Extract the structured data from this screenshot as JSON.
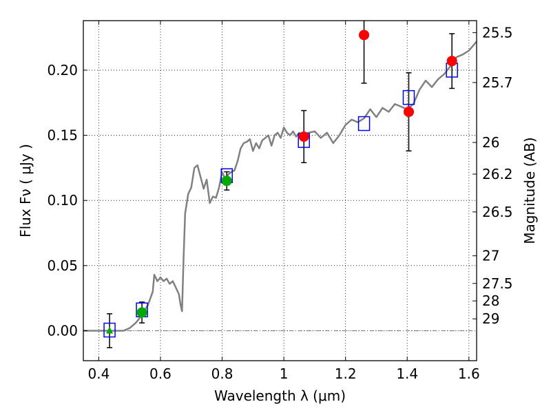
{
  "chart_data": {
    "type": "line",
    "xlabel": "Wavelength  λ (μm)",
    "ylabel": "Flux  Fν  ( μJy )",
    "y2label": "Magnitude (AB)",
    "xlim": [
      0.35,
      1.625
    ],
    "ylim": [
      -0.023,
      0.238
    ],
    "x_ticks": [
      0.4,
      0.6,
      0.8,
      1.0,
      1.2,
      1.4,
      1.6
    ],
    "x_tick_labels": [
      "0.4",
      "0.6",
      "0.8",
      "1",
      "1.2",
      "1.4",
      "1.6"
    ],
    "y_ticks": [
      0.0,
      0.05,
      0.1,
      0.15,
      0.2
    ],
    "y_tick_labels": [
      "0.00",
      "0.05",
      "0.10",
      "0.15",
      "0.20"
    ],
    "y2_ticks": [
      {
        "label": "25.5",
        "flux": 0.2288
      },
      {
        "label": "25.7",
        "flux": 0.1905
      },
      {
        "label": "26",
        "flux": 0.1445
      },
      {
        "label": "26.2",
        "flux": 0.1202
      },
      {
        "label": "26.5",
        "flux": 0.0912
      },
      {
        "label": "27",
        "flux": 0.0575
      },
      {
        "label": "27.5",
        "flux": 0.0363
      },
      {
        "label": "28",
        "flux": 0.0229
      },
      {
        "label": "29",
        "flux": 0.0091
      }
    ],
    "grid": true,
    "colors": {
      "model": "#808080",
      "box": "#0000ff",
      "green": "#00aa00",
      "red": "#ff0000",
      "errorbar": "#000000"
    },
    "series": [
      {
        "kind": "model_spectrum",
        "x": [
          0.35,
          0.4,
          0.45,
          0.48,
          0.5,
          0.52,
          0.54,
          0.56,
          0.575,
          0.58,
          0.59,
          0.6,
          0.61,
          0.62,
          0.63,
          0.64,
          0.65,
          0.66,
          0.665,
          0.67,
          0.675,
          0.68,
          0.69,
          0.7,
          0.71,
          0.72,
          0.73,
          0.74,
          0.75,
          0.76,
          0.77,
          0.78,
          0.79,
          0.8,
          0.81,
          0.82,
          0.83,
          0.84,
          0.85,
          0.86,
          0.87,
          0.88,
          0.89,
          0.9,
          0.91,
          0.92,
          0.93,
          0.94,
          0.95,
          0.96,
          0.97,
          0.98,
          0.99,
          1.0,
          1.01,
          1.02,
          1.03,
          1.04,
          1.05,
          1.06,
          1.08,
          1.1,
          1.12,
          1.14,
          1.16,
          1.18,
          1.2,
          1.22,
          1.24,
          1.26,
          1.28,
          1.3,
          1.32,
          1.34,
          1.36,
          1.38,
          1.4,
          1.42,
          1.44,
          1.46,
          1.48,
          1.5,
          1.52,
          1.54,
          1.56,
          1.58,
          1.6,
          1.625
        ],
        "y": [
          0.0,
          0.0,
          0.0,
          0.0,
          0.002,
          0.006,
          0.012,
          0.02,
          0.03,
          0.043,
          0.038,
          0.041,
          0.038,
          0.04,
          0.036,
          0.038,
          0.033,
          0.028,
          0.02,
          0.015,
          0.055,
          0.09,
          0.105,
          0.11,
          0.125,
          0.127,
          0.118,
          0.109,
          0.116,
          0.098,
          0.103,
          0.102,
          0.11,
          0.122,
          0.116,
          0.12,
          0.122,
          0.123,
          0.13,
          0.14,
          0.144,
          0.145,
          0.147,
          0.138,
          0.144,
          0.14,
          0.146,
          0.148,
          0.15,
          0.142,
          0.15,
          0.152,
          0.148,
          0.156,
          0.152,
          0.15,
          0.153,
          0.149,
          0.152,
          0.15,
          0.152,
          0.153,
          0.148,
          0.152,
          0.144,
          0.15,
          0.158,
          0.162,
          0.16,
          0.163,
          0.17,
          0.164,
          0.171,
          0.168,
          0.174,
          0.172,
          0.17,
          0.174,
          0.185,
          0.192,
          0.187,
          0.193,
          0.197,
          0.203,
          0.21,
          0.212,
          0.215,
          0.222
        ]
      },
      {
        "kind": "model_bands",
        "x": [
          0.435,
          0.54,
          0.815,
          1.065,
          1.26,
          1.405,
          1.545
        ],
        "y": [
          0.0005,
          0.016,
          0.119,
          0.146,
          0.159,
          0.179,
          0.2
        ]
      },
      {
        "kind": "observed_optical",
        "x": [
          0.54,
          0.815
        ],
        "y": [
          0.014,
          0.115
        ],
        "yerr": [
          0.008,
          0.007
        ]
      },
      {
        "kind": "upper_limit",
        "x": [
          0.435
        ],
        "y": [
          0.0
        ],
        "yerr": [
          0.013
        ]
      },
      {
        "kind": "observed_nir",
        "x": [
          1.065,
          1.26,
          1.405,
          1.545
        ],
        "y": [
          0.149,
          0.227,
          0.168,
          0.207
        ],
        "yerr": [
          0.02,
          0.037,
          0.03,
          0.021
        ]
      }
    ]
  }
}
